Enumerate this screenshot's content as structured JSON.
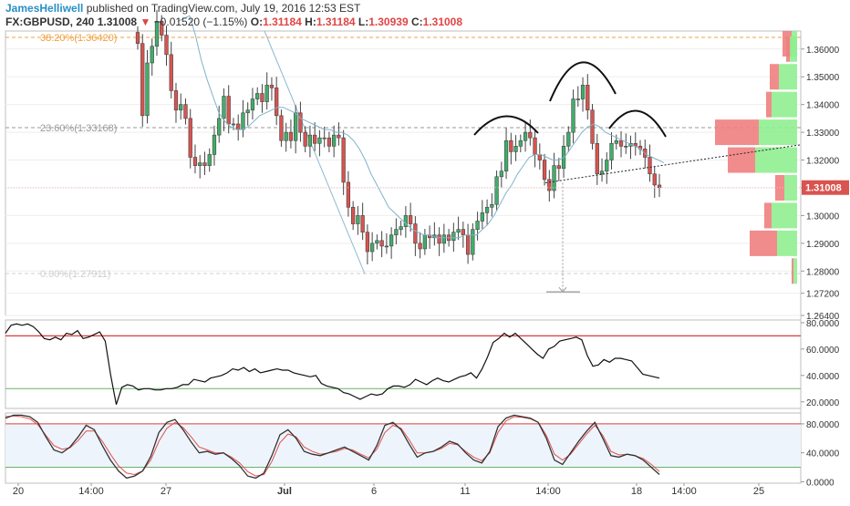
{
  "header": {
    "author": "JamesHelliwell",
    "published_text": " published on TradingView.com, July 19, 2016 12:53 EST",
    "symbol": "FX:GBPUSD, 240",
    "last": "1.31008",
    "change_arrow": "▼",
    "change": "−0.01520 (−1.15%)",
    "open_label": "O:",
    "open": "1.31184",
    "high_label": "H:",
    "high": "1.31184",
    "low_label": "L:",
    "low": "1.30939",
    "close_label": "C:",
    "close": "1.31008"
  },
  "colors": {
    "up": "#3fae6a",
    "down": "#d9534f",
    "fib": "#f0a040",
    "price_tag": "#d9534f",
    "red_line": "#e03c3c",
    "green_line": "#6cb36c",
    "ma": "#7fb3c9",
    "stoch_k": "#333333",
    "stoch_d": "#e05050",
    "stoch_band": "#eef4fb"
  },
  "chart_data": [
    {
      "type": "candlestick",
      "ylim": [
        1.264,
        1.3665
      ],
      "price_ticks": [
        "1.36000",
        "1.35000",
        "1.34000",
        "1.33000",
        "1.32000",
        "1.31000",
        "1.30000",
        "1.29000",
        "1.28000",
        "1.27200",
        "1.26400"
      ],
      "price_tick_values": [
        1.36,
        1.35,
        1.34,
        1.33,
        1.32,
        1.31,
        1.3,
        1.29,
        1.28,
        1.272,
        1.264
      ],
      "last_price_label": "1.31008",
      "last_price": 1.31008,
      "fib_levels": [
        {
          "label": "38.20%(1.36420)",
          "value": 1.3642,
          "color": "#f0a040"
        },
        {
          "label": "23.60%(1.33168)",
          "value": 1.33168,
          "color": "#9a9a9a"
        },
        {
          "label": "0.00%(1.27911)",
          "value": 1.27911,
          "color": "#cfcfcf"
        }
      ],
      "closes": [
        1.362,
        1.336,
        1.355,
        1.361,
        1.37,
        1.365,
        1.358,
        1.345,
        1.338,
        1.34,
        1.335,
        1.321,
        1.318,
        1.319,
        1.318,
        1.322,
        1.329,
        1.335,
        1.343,
        1.333,
        1.333,
        1.331,
        1.337,
        1.338,
        1.342,
        1.344,
        1.341,
        1.347,
        1.346,
        1.336,
        1.327,
        1.33,
        1.327,
        1.337,
        1.33,
        1.325,
        1.329,
        1.326,
        1.328,
        1.328,
        1.325,
        1.329,
        1.328,
        1.312,
        1.303,
        1.297,
        1.3,
        1.294,
        1.287,
        1.29,
        1.291,
        1.289,
        1.289,
        1.293,
        1.295,
        1.296,
        1.3,
        1.297,
        1.29,
        1.288,
        1.293,
        1.292,
        1.293,
        1.29,
        1.293,
        1.291,
        1.294,
        1.295,
        1.293,
        1.286,
        1.295,
        1.298,
        1.301,
        1.303,
        1.304,
        1.314,
        1.316,
        1.327,
        1.323,
        1.325,
        1.327,
        1.33,
        1.328,
        1.322,
        1.32,
        1.313,
        1.309,
        1.318,
        1.317,
        1.325,
        1.33,
        1.342,
        1.342,
        1.347,
        1.338,
        1.326,
        1.315,
        1.316,
        1.32,
        1.326,
        1.327,
        1.325,
        1.325,
        1.326,
        1.325,
        1.324,
        1.321,
        1.315,
        1.311,
        1.31008
      ],
      "ma_closes": [
        1.37,
        1.371,
        1.372,
        1.365,
        1.356,
        1.349,
        1.343,
        1.337,
        1.334,
        1.332,
        1.331,
        1.331,
        1.332,
        1.334,
        1.336,
        1.337,
        1.338,
        1.339,
        1.339,
        1.338,
        1.337,
        1.335,
        1.334,
        1.333,
        1.332,
        1.331,
        1.331,
        1.33,
        1.33,
        1.329,
        1.327,
        1.324,
        1.32,
        1.315,
        1.311,
        1.307,
        1.303,
        1.301,
        1.299,
        1.297,
        1.295,
        1.294,
        1.293,
        1.293,
        1.292,
        1.292,
        1.292,
        1.292,
        1.292,
        1.293,
        1.293,
        1.293,
        1.295,
        1.297,
        1.3,
        1.304,
        1.308,
        1.311,
        1.315,
        1.318,
        1.321,
        1.322,
        1.322,
        1.321,
        1.32,
        1.32,
        1.321,
        1.324,
        1.327,
        1.33,
        1.332,
        1.333,
        1.332,
        1.33,
        1.329,
        1.328,
        1.327,
        1.326,
        1.325,
        1.324,
        1.322,
        1.321,
        1.32,
        1.319
      ],
      "neckline": [
        [
          1.3118,
          1.3255
        ]
      ],
      "target_level": 1.2725,
      "volume_profile": [
        {
          "price": 1.3665,
          "up": 6,
          "down": 10
        },
        {
          "price": 1.36,
          "up": 8,
          "down": 4
        },
        {
          "price": 1.35,
          "up": 20,
          "down": 10
        },
        {
          "price": 1.34,
          "up": 28,
          "down": 6
        },
        {
          "price": 1.33,
          "up": 42,
          "down": 48
        },
        {
          "price": 1.32,
          "up": 46,
          "down": 30
        },
        {
          "price": 1.31,
          "up": 14,
          "down": 10
        },
        {
          "price": 1.3,
          "up": 28,
          "down": 8
        },
        {
          "price": 1.29,
          "up": 22,
          "down": 30
        },
        {
          "price": 1.28,
          "up": 4,
          "down": 2
        }
      ]
    },
    {
      "type": "line",
      "name": "",
      "ylim": [
        15,
        82
      ],
      "ticks": [
        "80.0000",
        "60.0000",
        "40.0000",
        "20.0000"
      ],
      "tick_values": [
        80,
        60,
        40,
        20
      ],
      "upper_band": 70,
      "lower_band": 30,
      "values": [
        72,
        78,
        79,
        78,
        79,
        77,
        73,
        68,
        67,
        69,
        67,
        72,
        71,
        74,
        68,
        69,
        71,
        73,
        66,
        40,
        18,
        31,
        33,
        32,
        29,
        30,
        30,
        29,
        29,
        30,
        30,
        31,
        33,
        33,
        37,
        36,
        35,
        38,
        39,
        40,
        42,
        45,
        44,
        46,
        43,
        45,
        42,
        43,
        44,
        45,
        44,
        44,
        42,
        41,
        40,
        39,
        40,
        34,
        32,
        31,
        30,
        27,
        26,
        24,
        22,
        24,
        26,
        25,
        26,
        30,
        32,
        32,
        31,
        33,
        37,
        35,
        33,
        36,
        38,
        36,
        35,
        37,
        39,
        40,
        42,
        38,
        45,
        54,
        65,
        68,
        72,
        69,
        72,
        68,
        64,
        60,
        56,
        53,
        60,
        62,
        66,
        67,
        68,
        69,
        67,
        55,
        47,
        48,
        52,
        50,
        53,
        53,
        52,
        51,
        46,
        41,
        40,
        39,
        38
      ],
      "x": [
        0,
        1,
        2,
        3,
        4,
        5,
        6,
        7,
        8,
        9,
        10,
        11,
        12,
        13,
        14,
        15,
        16,
        17,
        18,
        19,
        20,
        21,
        22,
        23,
        24,
        25,
        26,
        27,
        28,
        29,
        30,
        31,
        32,
        33,
        34,
        35,
        36,
        37,
        38,
        39,
        40,
        41,
        42,
        43,
        44,
        45,
        46,
        47,
        48,
        49,
        50,
        51,
        52,
        53,
        54,
        55,
        56,
        57,
        58,
        59,
        60,
        61,
        62,
        63,
        64,
        65,
        66,
        67,
        68,
        69,
        70,
        71,
        72,
        73,
        74,
        75,
        76,
        77,
        78,
        79,
        80,
        81,
        82,
        83,
        84,
        85,
        86,
        87,
        88,
        89,
        90,
        91,
        92,
        93,
        94,
        95,
        96,
        97,
        98,
        99,
        100,
        101,
        102,
        103,
        104,
        105,
        106,
        107,
        108,
        109,
        110,
        111,
        112,
        113,
        114,
        115,
        116,
        117,
        118
      ]
    },
    {
      "type": "line",
      "name": "",
      "ylim": [
        -2,
        95
      ],
      "ticks": [
        "80.0000",
        "40.0000",
        "0.0000"
      ],
      "tick_values": [
        80,
        40,
        0
      ],
      "upper_band": 80,
      "lower_band": 20,
      "series_k": [
        88,
        92,
        92,
        90,
        82,
        62,
        44,
        40,
        48,
        62,
        78,
        72,
        50,
        30,
        15,
        5,
        8,
        15,
        35,
        68,
        82,
        86,
        72,
        55,
        40,
        42,
        38,
        40,
        32,
        22,
        8,
        5,
        12,
        36,
        65,
        72,
        60,
        42,
        38,
        36,
        40,
        44,
        48,
        42,
        36,
        30,
        50,
        78,
        82,
        72,
        52,
        34,
        40,
        42,
        48,
        56,
        52,
        40,
        30,
        26,
        42,
        76,
        88,
        92,
        90,
        88,
        82,
        60,
        30,
        24,
        40,
        56,
        70,
        82,
        60,
        36,
        34,
        38,
        36,
        30,
        20,
        10
      ],
      "series_d": [
        90,
        91,
        90,
        87,
        79,
        64,
        50,
        45,
        47,
        57,
        70,
        70,
        56,
        38,
        22,
        12,
        10,
        15,
        30,
        56,
        74,
        82,
        75,
        62,
        48,
        44,
        40,
        40,
        34,
        26,
        14,
        8,
        10,
        28,
        54,
        66,
        62,
        48,
        42,
        38,
        40,
        42,
        46,
        44,
        38,
        33,
        45,
        68,
        78,
        74,
        58,
        40,
        40,
        42,
        46,
        53,
        51,
        42,
        34,
        29,
        40,
        68,
        84,
        90,
        89,
        87,
        82,
        64,
        38,
        30,
        38,
        52,
        66,
        78,
        64,
        42,
        37,
        38,
        36,
        32,
        24,
        14
      ]
    }
  ],
  "time_axis": {
    "labels": [
      "20",
      "14:00",
      "27",
      "Jul",
      "6",
      "11",
      "14:00",
      "18",
      "14:00",
      "25"
    ],
    "bold": [
      "Jul"
    ]
  }
}
